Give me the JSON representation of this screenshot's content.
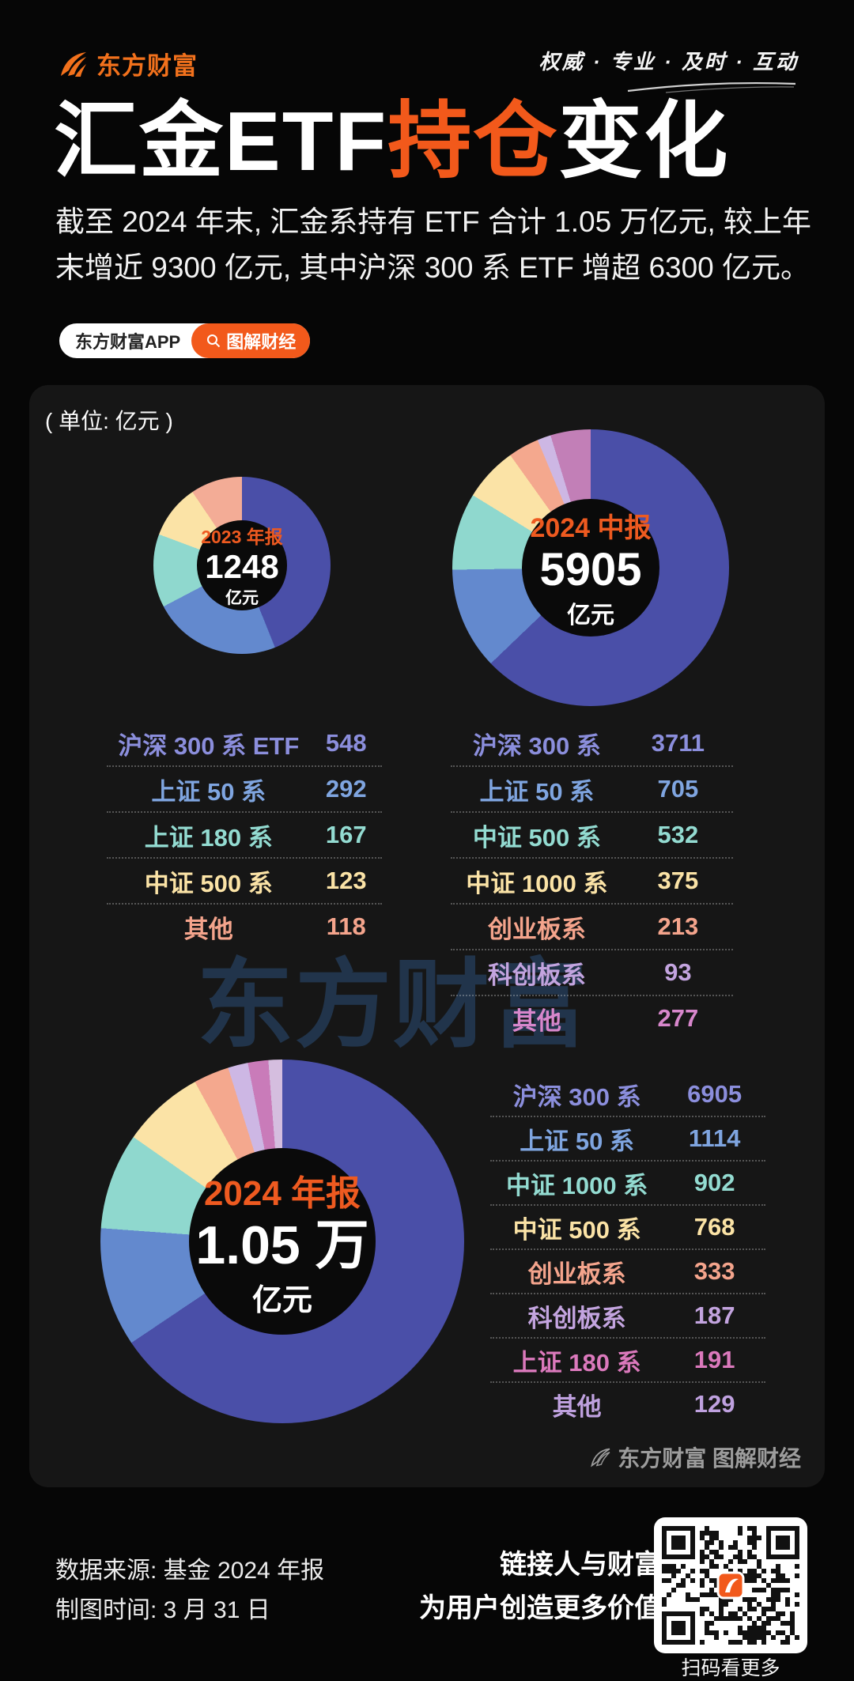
{
  "brand": {
    "logo_text": "东方财富",
    "slogan": "权威 · 专业 · 及时 · 互动",
    "app_badge": "东方财富APP",
    "channel_badge": "图解财经",
    "accent_color": "#F2591B"
  },
  "title": {
    "part1": "汇金ETF",
    "part2": "持仓",
    "part3": "变化"
  },
  "subtitle_lines": [
    "截至 2024 年末, 汇金系持有 ETF 合计 1.05 万亿元, 较上年",
    "末增近 9300 亿元, 其中沪深 300 系 ETF 增超 6300 亿元。"
  ],
  "unit_note": "( 单位: 亿元 )",
  "watermark": "东方财富",
  "card_footer": "东方财富 图解财经",
  "footer": {
    "source": "数据来源: 基金 2024 年报",
    "date": "制图时间: 3 月 31 日",
    "slogan1": "链接人与财富",
    "slogan2": "为用户创造更多价值",
    "qr_caption": "扫码看更多"
  },
  "chart_data": [
    {
      "type": "pie",
      "title": "2023 年报",
      "center_label": "2023 年报",
      "center_value": "1248",
      "center_unit": "亿元",
      "total": 1248,
      "legend_position": "below-table",
      "series": [
        {
          "label": "沪深 300 系 ETF",
          "value": 548,
          "color": "#4A4FA8",
          "text_color": "#8B8EDC"
        },
        {
          "label": "上证 50 系",
          "value": 292,
          "color": "#6389CE",
          "text_color": "#7FA5E0"
        },
        {
          "label": "上证 180 系",
          "value": 167,
          "color": "#8FD8CE",
          "text_color": "#93DBD1"
        },
        {
          "label": "中证 500 系",
          "value": 123,
          "color": "#FBE3A6",
          "text_color": "#FBE3A6"
        },
        {
          "label": "其他",
          "value": 118,
          "color": "#F3AC96",
          "text_color": "#F4A48C"
        }
      ]
    },
    {
      "type": "pie",
      "title": "2024 中报",
      "center_label": "2024 中报",
      "center_value": "5905",
      "center_unit": "亿元",
      "total": 5905,
      "legend_position": "below-table",
      "series": [
        {
          "label": "沪深 300 系",
          "value": 3711,
          "color": "#4A4FA8",
          "text_color": "#8B8EDC"
        },
        {
          "label": "上证 50 系",
          "value": 705,
          "color": "#6389CE",
          "text_color": "#7FA5E0"
        },
        {
          "label": "中证 500 系",
          "value": 532,
          "color": "#8FD8CE",
          "text_color": "#93DBD1"
        },
        {
          "label": "中证 1000 系",
          "value": 375,
          "color": "#FBE3A6",
          "text_color": "#FBE3A6"
        },
        {
          "label": "创业板系",
          "value": 213,
          "color": "#F4A88E",
          "text_color": "#F4A48C"
        },
        {
          "label": "科创板系",
          "value": 93,
          "color": "#CDB7E4",
          "text_color": "#C3A4DF"
        },
        {
          "label": "其他",
          "value": 277,
          "color": "#C27FB7",
          "text_color": "#D887CC"
        }
      ]
    },
    {
      "type": "pie",
      "title": "2024 年报",
      "center_label": "2024 年报",
      "center_value": "1.05 万",
      "center_unit": "亿元",
      "total": 10529,
      "legend_position": "right-table",
      "series": [
        {
          "label": "沪深 300 系",
          "value": 6905,
          "color": "#4A4FA8",
          "text_color": "#8B8EDC"
        },
        {
          "label": "上证 50 系",
          "value": 1114,
          "color": "#6389CE",
          "text_color": "#7FA5E0"
        },
        {
          "label": "中证 1000 系",
          "value": 902,
          "color": "#8FD8CE",
          "text_color": "#93DBD1"
        },
        {
          "label": "中证 500 系",
          "value": 768,
          "color": "#FBE3A6",
          "text_color": "#FBE3A6"
        },
        {
          "label": "创业板系",
          "value": 333,
          "color": "#F4A88E",
          "text_color": "#F4A48C"
        },
        {
          "label": "科创板系",
          "value": 187,
          "color": "#CDB7E4",
          "text_color": "#C3A4DF"
        },
        {
          "label": "上证 180 系",
          "value": 191,
          "color": "#C97BB9",
          "text_color": "#DB79BC"
        },
        {
          "label": "其他",
          "value": 129,
          "color": "#D5BEDF",
          "text_color": "#BFA1DF"
        }
      ]
    }
  ]
}
